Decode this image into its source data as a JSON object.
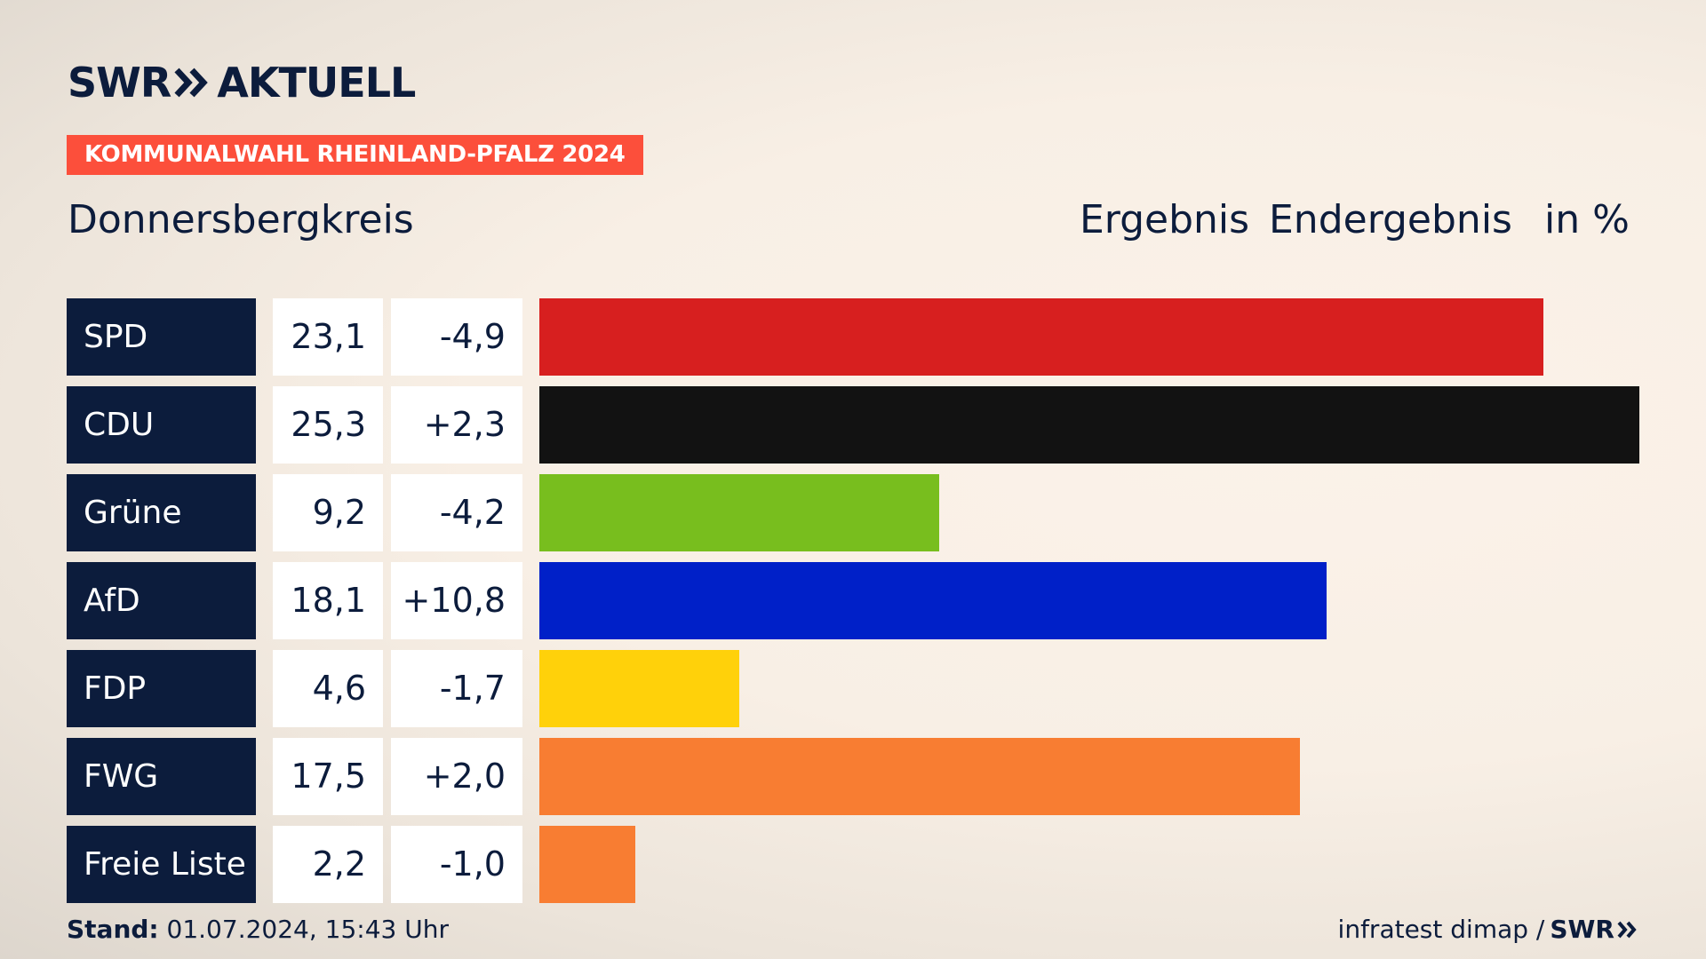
{
  "brand": {
    "name_left": "SWR",
    "name_right": "AKTUELL",
    "chevron_icon": "double-chevron-right-icon"
  },
  "badge": {
    "label": "KOMMUNALWAHL RHEINLAND-PFALZ 2024",
    "color": "#fc4f3b"
  },
  "header": {
    "region": "Donnersbergkreis",
    "result_label": "Ergebnis",
    "status_label": "Endergebnis",
    "unit_label": "in %"
  },
  "chart_data": {
    "type": "bar",
    "orientation": "horizontal",
    "categories": [
      "SPD",
      "CDU",
      "Grüne",
      "AfD",
      "FDP",
      "FWG",
      "Freie Liste"
    ],
    "values": [
      23.1,
      25.3,
      9.2,
      18.1,
      4.6,
      17.5,
      2.2
    ],
    "value_labels": [
      "23,1",
      "25,3",
      "9,2",
      "18,1",
      "4,6",
      "17,5",
      "2,2"
    ],
    "diff_labels": [
      "-4,9",
      "+2,3",
      "-4,2",
      "+10,8",
      "-1,7",
      "+2,0",
      "-1,0"
    ],
    "diffs": [
      -4.9,
      2.3,
      -4.2,
      10.8,
      -1.7,
      2.0,
      -1.0
    ],
    "colors": [
      "#d71f1f",
      "#121212",
      "#78be1e",
      "#0020c8",
      "#ffd10a",
      "#f87d32",
      "#f87d32"
    ],
    "xlim": [
      0,
      25.3
    ],
    "title": "",
    "xlabel": "",
    "ylabel": "",
    "grid": false,
    "legend": "none"
  },
  "footer": {
    "stand_label": "Stand:",
    "stand_value": "01.07.2024, 15:43 Uhr",
    "source": "infratest dimap /",
    "source_brand": "SWR"
  }
}
